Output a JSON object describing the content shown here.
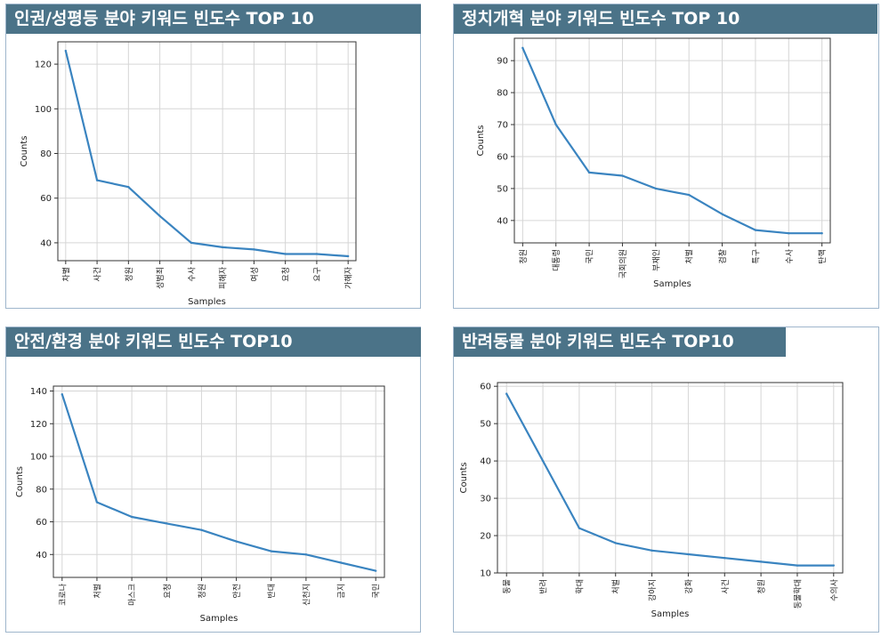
{
  "panels": [
    {
      "title": "인권/성평등 분야 키워드 빈도수 TOP 10",
      "chart_data": {
        "type": "line",
        "xlabel": "Samples",
        "ylabel": "Counts",
        "categories": [
          "차별",
          "사건",
          "정원",
          "성범죄",
          "수사",
          "피해자",
          "여성",
          "요청",
          "요구",
          "가해자"
        ],
        "values": [
          126,
          68,
          65,
          52,
          40,
          38,
          37,
          35,
          35,
          34
        ],
        "yticks": [
          40,
          60,
          80,
          100,
          120
        ],
        "ylim": [
          32,
          130
        ],
        "grid": true,
        "line_color": "#3a84c0"
      }
    },
    {
      "title": "정치개혁 분야 키워드 빈도수 TOP 10",
      "chart_data": {
        "type": "line",
        "xlabel": "Samples",
        "ylabel": "Counts",
        "categories": [
          "청원",
          "대통령",
          "국민",
          "국회의원",
          "부재인",
          "처벌",
          "검찰",
          "특구",
          "수사",
          "탄핵"
        ],
        "values": [
          94,
          70,
          55,
          54,
          50,
          48,
          42,
          37,
          36,
          36
        ],
        "yticks": [
          40,
          50,
          60,
          70,
          80,
          90
        ],
        "ylim": [
          33,
          97
        ],
        "grid": true,
        "line_color": "#3a84c0"
      }
    },
    {
      "title": "안전/환경 분야 키워드 빈도수 TOP10",
      "chart_data": {
        "type": "line",
        "xlabel": "Samples",
        "ylabel": "Counts",
        "categories": [
          "코로나",
          "처벌",
          "마스크",
          "요청",
          "청원",
          "안전",
          "반대",
          "신천지",
          "금지",
          "국민"
        ],
        "values": [
          138,
          72,
          63,
          59,
          55,
          48,
          42,
          40,
          35,
          30
        ],
        "yticks": [
          40,
          60,
          80,
          100,
          120,
          140
        ],
        "ylim": [
          26,
          143
        ],
        "grid": true,
        "line_color": "#3a84c0"
      }
    },
    {
      "title": "반려동물 분야 키워드 빈도수 TOP10",
      "chart_data": {
        "type": "line",
        "xlabel": "Samples",
        "ylabel": "Counts",
        "categories": [
          "동물",
          "반려",
          "학대",
          "처벌",
          "강아지",
          "강화",
          "사건",
          "청원",
          "동물학대",
          "수의사"
        ],
        "values": [
          58,
          40,
          22,
          18,
          16,
          15,
          14,
          13,
          12,
          12
        ],
        "yticks": [
          10,
          20,
          30,
          40,
          50,
          60
        ],
        "ylim": [
          10,
          61
        ],
        "grid": true,
        "line_color": "#3a84c0"
      }
    }
  ]
}
